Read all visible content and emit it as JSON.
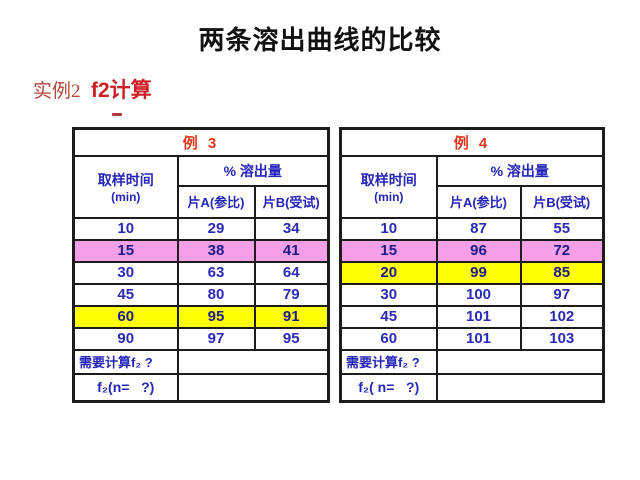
{
  "slide": {
    "title": "两条溶出曲线的比较",
    "subtitle_label": "实例2",
    "subtitle_value": "f2计算"
  },
  "colors": {
    "title_text": "#111111",
    "subtitle_label": "#b5453c",
    "subtitle_value": "#cc2025",
    "table_title": "#e2391e",
    "header_text": "#2525bb",
    "data_text": "#2a2ab8",
    "highlight_data_text": "#1b1b8a",
    "pink": "#f49fe6",
    "yellow": "#ffff05",
    "border": "#1c1c1c",
    "dash": "#b03a3a"
  },
  "tables": [
    {
      "title": "例 3",
      "time_header": "取样时间",
      "time_unit": "(min)",
      "dissolution_header": "% 溶出量",
      "col_a": "片A(参比)",
      "col_b": "片B(受试)",
      "rows": [
        {
          "time": "10",
          "a": "29",
          "b": "34",
          "highlight": "none"
        },
        {
          "time": "15",
          "a": "38",
          "b": "41",
          "highlight": "pink"
        },
        {
          "time": "30",
          "a": "63",
          "b": "64",
          "highlight": "none"
        },
        {
          "time": "45",
          "a": "80",
          "b": "79",
          "highlight": "none"
        },
        {
          "time": "60",
          "a": "95",
          "b": "91",
          "highlight": "yellow"
        },
        {
          "time": "90",
          "a": "97",
          "b": "95",
          "highlight": "none"
        }
      ],
      "footer_question": "需要计算f₂ ?",
      "footer_f2": "f₂(n=   ?)"
    },
    {
      "title": "例 4",
      "time_header": "取样时间",
      "time_unit": "(min)",
      "dissolution_header": "% 溶出量",
      "col_a": "片A(参比)",
      "col_b": "片B(受试)",
      "rows": [
        {
          "time": "10",
          "a": "87",
          "b": "55",
          "highlight": "none"
        },
        {
          "time": "15",
          "a": "96",
          "b": "72",
          "highlight": "pink"
        },
        {
          "time": "20",
          "a": "99",
          "b": "85",
          "highlight": "yellow"
        },
        {
          "time": "30",
          "a": "100",
          "b": "97",
          "highlight": "none"
        },
        {
          "time": "45",
          "a": "101",
          "b": "102",
          "highlight": "none"
        },
        {
          "time": "60",
          "a": "101",
          "b": "103",
          "highlight": "none"
        }
      ],
      "footer_question": "需要计算f₂ ?",
      "footer_f2": "f₂( n=   ?)"
    }
  ]
}
